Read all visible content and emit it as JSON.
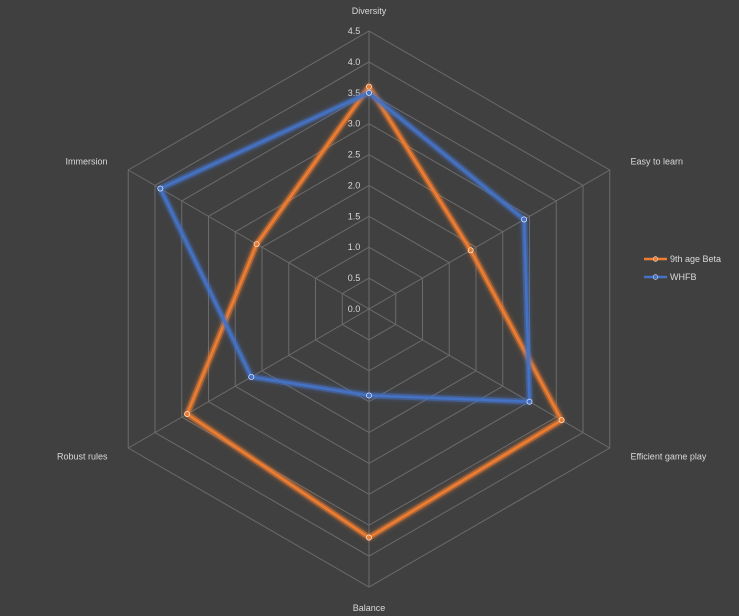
{
  "chart_data": {
    "type": "radar",
    "title": "",
    "categories": [
      "Diversity",
      "Easy to learn",
      "Efficient game play",
      "Balance",
      "Robust rules",
      "Immersion"
    ],
    "rlim": [
      0,
      4.5
    ],
    "ticks": [
      "0.0",
      "0.5",
      "1.0",
      "1.5",
      "2.0",
      "2.5",
      "3.0",
      "3.5",
      "4.0",
      "4.5"
    ],
    "legend_position": "right",
    "series": [
      {
        "name": "9th age Beta",
        "color": "#ed7d31",
        "values": [
          3.6,
          1.9,
          3.6,
          3.7,
          3.4,
          2.1
        ]
      },
      {
        "name": "WHFB",
        "color": "#4472c4",
        "values": [
          3.5,
          2.9,
          3.0,
          1.4,
          2.2,
          3.9
        ]
      }
    ]
  }
}
